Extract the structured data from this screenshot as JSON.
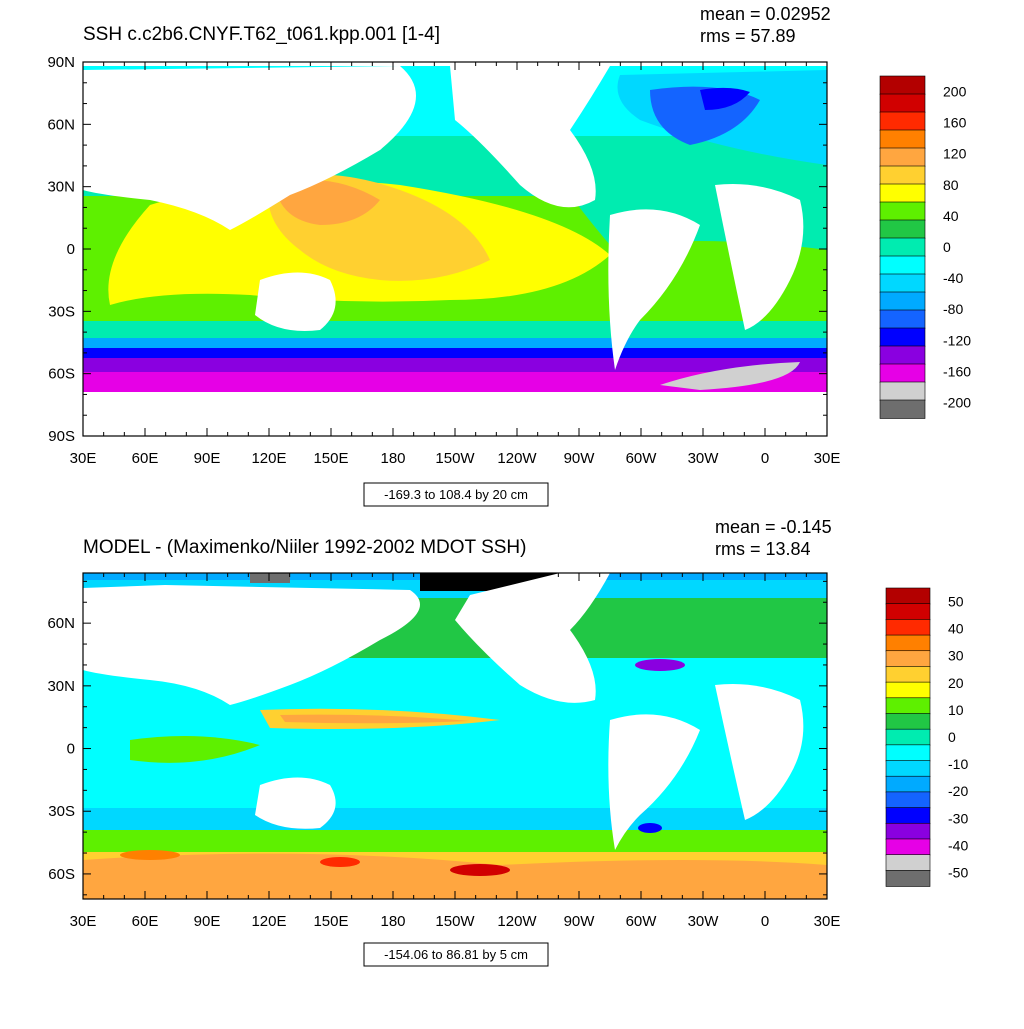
{
  "chart_data": [
    {
      "type": "heatmap",
      "title": "SSH c.c2b6.CNYF.T62_t061.kpp.001 [1-4]",
      "stats": {
        "mean": "mean = 0.02952",
        "rms": "rms = 57.89"
      },
      "info": "-169.3 to 108.4 by 20 cm",
      "x_ticks": [
        "30E",
        "60E",
        "90E",
        "120E",
        "150E",
        "180",
        "150W",
        "120W",
        "90W",
        "60W",
        "30W",
        "0",
        "30E"
      ],
      "y_ticks": [
        "90N",
        "60N",
        "30N",
        "0",
        "30S",
        "60S",
        "90S"
      ],
      "xlim": [
        30,
        390
      ],
      "ylim": [
        -90,
        90
      ],
      "colorbar": {
        "labels": [
          "200",
          "160",
          "120",
          "80",
          "40",
          "0",
          "-40",
          "-80",
          "-120",
          "-160",
          "-200"
        ],
        "colors": [
          "#b30000",
          "#d10000",
          "#ff2a00",
          "#ff8000",
          "#ffa640",
          "#ffd030",
          "#ffff00",
          "#5ef000",
          "#21c745",
          "#00ecb0",
          "#00ffff",
          "#00d8ff",
          "#00aaff",
          "#1464ff",
          "#0000ff",
          "#8a00e0",
          "#e600e6",
          "#d0d0d0",
          "#6e6e6e"
        ]
      }
    },
    {
      "type": "heatmap",
      "title": "MODEL - (Maximenko/Niiler 1992-2002 MDOT SSH)",
      "stats": {
        "mean": "mean = -0.145",
        "rms": "rms = 13.84"
      },
      "info": "-154.06 to 86.81 by 5 cm",
      "x_ticks": [
        "30E",
        "60E",
        "90E",
        "120E",
        "150E",
        "180",
        "150W",
        "120W",
        "90W",
        "60W",
        "30W",
        "0",
        "30E"
      ],
      "y_ticks": [
        "60N",
        "30N",
        "0",
        "30S",
        "60S"
      ],
      "xlim": [
        30,
        390
      ],
      "ylim": [
        -72,
        84
      ],
      "colorbar": {
        "labels": [
          "50",
          "40",
          "30",
          "20",
          "10",
          "0",
          "-10",
          "-20",
          "-30",
          "-40",
          "-50"
        ],
        "colors": [
          "#b30000",
          "#d10000",
          "#ff2a00",
          "#ff8000",
          "#ffa640",
          "#ffd030",
          "#ffff00",
          "#5ef000",
          "#21c745",
          "#00ecb0",
          "#00ffff",
          "#00d8ff",
          "#00aaff",
          "#1464ff",
          "#0000ff",
          "#8a00e0",
          "#e600e6",
          "#d0d0d0",
          "#6e6e6e"
        ]
      }
    }
  ]
}
